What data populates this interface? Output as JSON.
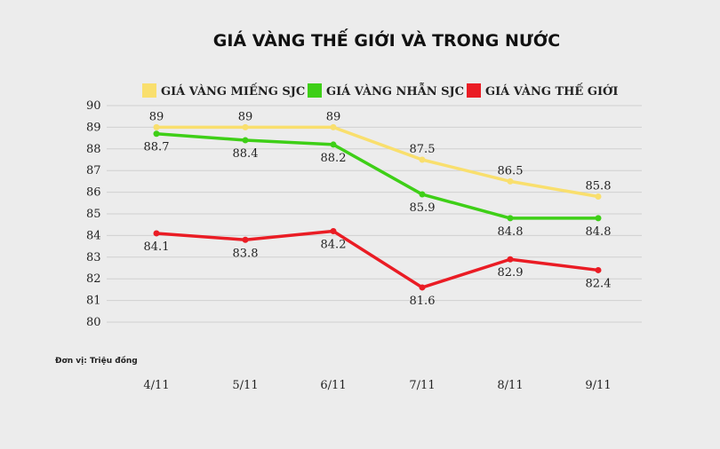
{
  "chart_data": {
    "type": "line",
    "title": "GIÁ VÀNG THẾ GIỚI VÀ TRONG NƯỚC",
    "unit_note": "Đơn vị: Triệu đồng",
    "categories": [
      "4/11",
      "5/11",
      "6/11",
      "7/11",
      "8/11",
      "9/11"
    ],
    "ylim": [
      80,
      90
    ],
    "yticks": [
      80,
      81,
      82,
      83,
      84,
      85,
      86,
      87,
      88,
      89,
      90
    ],
    "grid": true,
    "legend_position": "top",
    "series": [
      {
        "name": "GIÁ VÀNG MIẾNG SJC",
        "color": "#f9df6d",
        "values": [
          89,
          89,
          89,
          87.5,
          86.5,
          85.8
        ],
        "label_pos": "above"
      },
      {
        "name": "GIÁ VÀNG NHẪN SJC",
        "color": "#3ecf17",
        "values": [
          88.7,
          88.4,
          88.2,
          85.9,
          84.8,
          84.8
        ],
        "label_pos": "below"
      },
      {
        "name": "GIÁ VÀNG THẾ GIỚI",
        "color": "#ea1c24",
        "values": [
          84.1,
          83.8,
          84.2,
          81.6,
          82.9,
          82.4
        ],
        "label_pos": "below"
      }
    ]
  }
}
